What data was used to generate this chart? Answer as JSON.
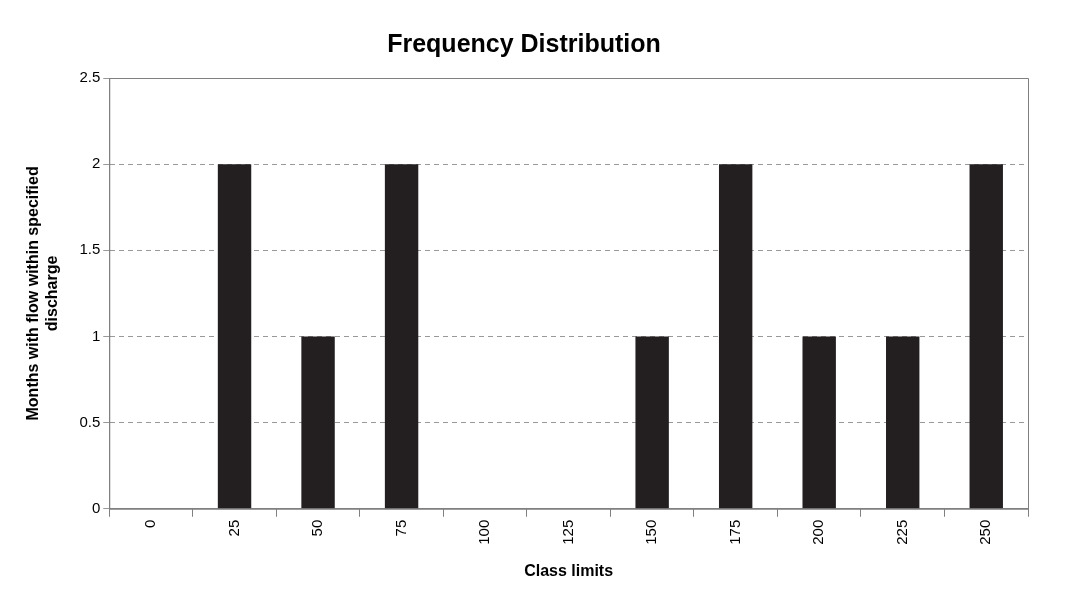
{
  "chart_data": {
    "type": "bar",
    "title": "Frequency Distribution",
    "xlabel": "Class limits",
    "ylabel": "Months with flow within specified discharge",
    "categories": [
      "0",
      "25",
      "50",
      "75",
      "100",
      "125",
      "150",
      "175",
      "200",
      "225",
      "250"
    ],
    "values": [
      0,
      2,
      1,
      2,
      0,
      0,
      1,
      2,
      1,
      1,
      2
    ],
    "color": "#231f20",
    "ylim": [
      0,
      2.5
    ],
    "yticks": [
      0,
      0.5,
      1,
      1.5,
      2,
      2.5
    ],
    "grid": "y",
    "legend": false
  }
}
